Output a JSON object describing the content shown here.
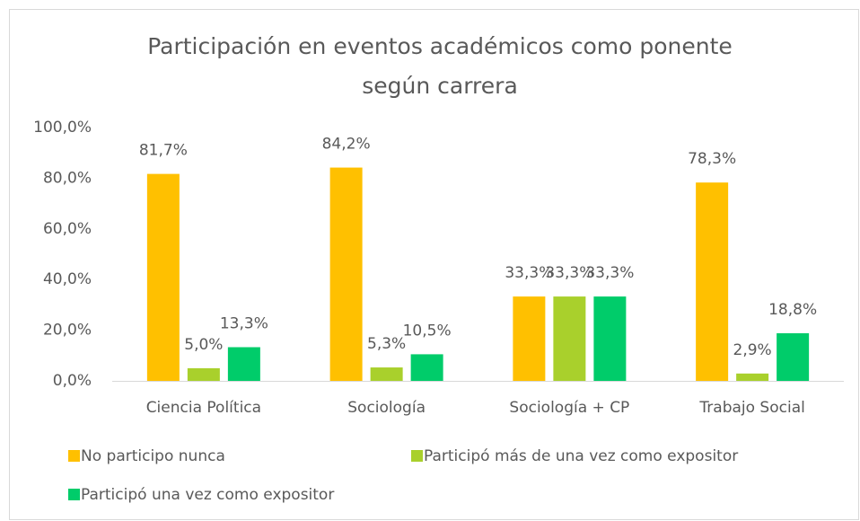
{
  "chart_data": {
    "type": "bar",
    "title": "Participación en eventos académicos como ponente según carrera",
    "categories": [
      "Ciencia Política",
      "Sociología",
      "Sociología + CP",
      "Trabajo Social"
    ],
    "series": [
      {
        "name": "No participo nunca",
        "color": "#ffc000",
        "values": [
          81.7,
          84.2,
          33.3,
          78.3
        ],
        "value_labels": [
          "81,7%",
          "84,2%",
          "33,3%",
          "78,3%"
        ]
      },
      {
        "name": "Participó más de una vez como expositor",
        "color": "#a9d02c",
        "values": [
          5.0,
          5.3,
          33.3,
          2.9
        ],
        "value_labels": [
          "5,0%",
          "5,3%",
          "33,3%",
          "2,9%"
        ]
      },
      {
        "name": "Participó una vez como expositor",
        "color": "#00cc6a",
        "values": [
          13.3,
          10.5,
          33.3,
          18.8
        ],
        "value_labels": [
          "13,3%",
          "10,5%",
          "33,3%",
          "18,8%"
        ]
      }
    ],
    "ylim": [
      0,
      100
    ],
    "yticks": [
      {
        "value": 0,
        "label": "0,0%"
      },
      {
        "value": 20,
        "label": "20,0%"
      },
      {
        "value": 40,
        "label": "40,0%"
      },
      {
        "value": 60,
        "label": "60,0%"
      },
      {
        "value": 80,
        "label": "80,0%"
      },
      {
        "value": 100,
        "label": "100,0%"
      }
    ],
    "grid": false
  }
}
